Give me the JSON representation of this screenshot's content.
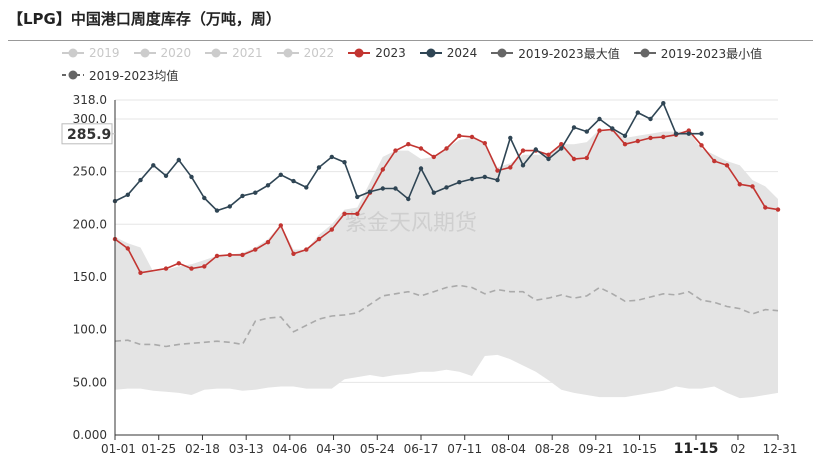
{
  "title": "【LPG】中国港口周度库存（万吨，周）",
  "watermark": "紫金天风期货",
  "legend": [
    {
      "name": "2019",
      "color": "#cccccc",
      "active": false,
      "style": "marker"
    },
    {
      "name": "2020",
      "color": "#cccccc",
      "active": false,
      "style": "marker"
    },
    {
      "name": "2021",
      "color": "#cccccc",
      "active": false,
      "style": "marker"
    },
    {
      "name": "2022",
      "color": "#cccccc",
      "active": false,
      "style": "marker"
    },
    {
      "name": "2023",
      "color": "#c23531",
      "active": true,
      "style": "marker"
    },
    {
      "name": "2024",
      "color": "#2f4554",
      "active": true,
      "style": "marker"
    },
    {
      "name": "2019-2023最大值",
      "color": "#666666",
      "active": true,
      "style": "marker"
    },
    {
      "name": "2019-2023最小值",
      "color": "#666666",
      "active": true,
      "style": "marker"
    },
    {
      "name": "2019-2023均值",
      "color": "#666666",
      "active": true,
      "style": "dashed"
    }
  ],
  "chart_data": {
    "type": "line",
    "title": "【LPG】中国港口周度库存（万吨，周）",
    "xlabel": "",
    "ylabel": "",
    "ylim": [
      0,
      318
    ],
    "y_ticks": [
      "0.000",
      "50.00",
      "100.0",
      "150.0",
      "200.0",
      "250.0",
      "300.0",
      "318.0"
    ],
    "y_tick_values": [
      0,
      50,
      100,
      150,
      200,
      250,
      300,
      318
    ],
    "x_ticks": [
      "01-01",
      "01-25",
      "02-18",
      "03-13",
      "04-06",
      "04-30",
      "05-24",
      "06-17",
      "07-11",
      "08-04",
      "08-28",
      "09-21",
      "10-15",
      "11-15",
      "02",
      "12-31"
    ],
    "x_tick_weeks": [
      0,
      3.43,
      6.86,
      10.29,
      13.71,
      17.14,
      20.57,
      24,
      27.43,
      30.86,
      34.29,
      37.71,
      41.14,
      45.57,
      48.86,
      52
    ],
    "highlight_tick": "11-15",
    "pointer_value": "285.9",
    "grid": true,
    "series": [
      {
        "name": "2023",
        "color": "#c23531",
        "x": [
          0,
          1,
          2,
          4,
          5,
          6,
          7,
          8,
          9,
          10,
          11,
          12,
          13,
          14,
          15,
          16,
          17,
          18,
          19,
          20,
          21,
          22,
          23,
          24,
          25,
          26,
          27,
          28,
          29,
          30,
          31,
          32,
          33,
          34,
          35,
          36,
          37,
          38,
          39,
          40,
          41,
          42,
          43,
          44,
          45,
          46,
          47,
          48,
          49,
          50,
          51,
          52
        ],
        "values": [
          186,
          177,
          154,
          158,
          163,
          158,
          160,
          170,
          171,
          171,
          176,
          183,
          199,
          172,
          176,
          186,
          195,
          210,
          210,
          230,
          252,
          270,
          276,
          272,
          264,
          272,
          284,
          283,
          277,
          251,
          254,
          270,
          270,
          266,
          276,
          262,
          263,
          289,
          290,
          276,
          279,
          282,
          283,
          285,
          289,
          275,
          260,
          256,
          238,
          236,
          216,
          214
        ]
      },
      {
        "name": "2024",
        "color": "#2f4554",
        "x": [
          0,
          1,
          2,
          3,
          4,
          5,
          6,
          7,
          8,
          9,
          10,
          11,
          12,
          13,
          14,
          15,
          16,
          17,
          18,
          19,
          20,
          21,
          22,
          23,
          24,
          25,
          26,
          27,
          28,
          29,
          30,
          31,
          32,
          33,
          34,
          35,
          36,
          37,
          38,
          39,
          40,
          41,
          42,
          43,
          44,
          45,
          46
        ],
        "values": [
          222,
          228,
          242,
          256,
          246,
          261,
          245,
          225,
          213,
          217,
          227,
          230,
          237,
          247,
          241,
          235,
          254,
          264,
          259,
          226,
          231,
          234,
          234,
          224,
          253,
          230,
          235,
          240,
          243,
          245,
          242,
          282,
          256,
          271,
          262,
          272,
          292,
          288,
          300,
          291,
          284,
          306,
          300,
          315,
          286,
          286,
          286
        ]
      },
      {
        "name": "2019-2023最大值",
        "color": "#666666",
        "x": [
          0,
          1,
          2,
          3,
          4,
          5,
          6,
          7,
          8,
          9,
          10,
          11,
          12,
          13,
          14,
          15,
          16,
          17,
          18,
          19,
          20,
          21,
          22,
          23,
          24,
          25,
          26,
          27,
          28,
          29,
          30,
          31,
          32,
          33,
          34,
          35,
          36,
          37,
          38,
          39,
          40,
          41,
          42,
          43,
          44,
          45,
          46,
          47,
          48,
          49,
          50,
          51,
          52
        ],
        "values": [
          188,
          182,
          178,
          155,
          157,
          160,
          162,
          166,
          170,
          171,
          173,
          178,
          186,
          200,
          176,
          176,
          190,
          200,
          214,
          216,
          240,
          264,
          270,
          270,
          262,
          264,
          272,
          280,
          282,
          278,
          254,
          258,
          266,
          266,
          266,
          276,
          276,
          278,
          290,
          290,
          282,
          284,
          286,
          288,
          288,
          288,
          272,
          266,
          260,
          256,
          242,
          236,
          224
        ]
      },
      {
        "name": "2019-2023最小值",
        "color": "#666666",
        "x": [
          0,
          1,
          2,
          3,
          4,
          5,
          6,
          7,
          8,
          9,
          10,
          11,
          12,
          13,
          14,
          15,
          16,
          17,
          18,
          19,
          20,
          21,
          22,
          23,
          24,
          25,
          26,
          27,
          28,
          29,
          30,
          31,
          32,
          33,
          34,
          35,
          36,
          37,
          38,
          39,
          40,
          41,
          42,
          43,
          44,
          45,
          46,
          47,
          48,
          49,
          50,
          51,
          52
        ],
        "values": [
          43,
          44,
          44,
          42,
          41,
          40,
          38,
          43,
          44,
          44,
          42,
          43,
          45,
          46,
          46,
          44,
          44,
          44,
          53,
          55,
          57,
          55,
          57,
          58,
          60,
          60,
          62,
          60,
          56,
          75,
          76,
          72,
          66,
          60,
          52,
          43,
          40,
          38,
          36,
          36,
          36,
          38,
          40,
          42,
          46,
          44,
          44,
          46,
          40,
          35,
          36,
          38,
          40
        ]
      },
      {
        "name": "2019-2023均值",
        "color": "#aaaaaa",
        "x": [
          0,
          1,
          2,
          3,
          4,
          5,
          6,
          7,
          8,
          9,
          10,
          11,
          12,
          13,
          14,
          15,
          16,
          17,
          18,
          19,
          20,
          21,
          22,
          23,
          24,
          25,
          26,
          27,
          28,
          29,
          30,
          31,
          32,
          33,
          34,
          35,
          36,
          37,
          38,
          39,
          40,
          41,
          42,
          43,
          44,
          45,
          46,
          47,
          48,
          49,
          50,
          51,
          52
        ],
        "values": [
          89,
          90,
          86,
          86,
          84,
          86,
          87,
          88,
          89,
          88,
          86,
          108,
          111,
          112,
          98,
          104,
          110,
          113,
          114,
          116,
          124,
          132,
          134,
          136,
          132,
          136,
          140,
          142,
          140,
          134,
          138,
          136,
          136,
          128,
          130,
          133,
          130,
          132,
          140,
          134,
          127,
          128,
          131,
          134,
          133,
          136,
          128,
          126,
          122,
          120,
          115,
          119,
          118
        ]
      }
    ]
  }
}
